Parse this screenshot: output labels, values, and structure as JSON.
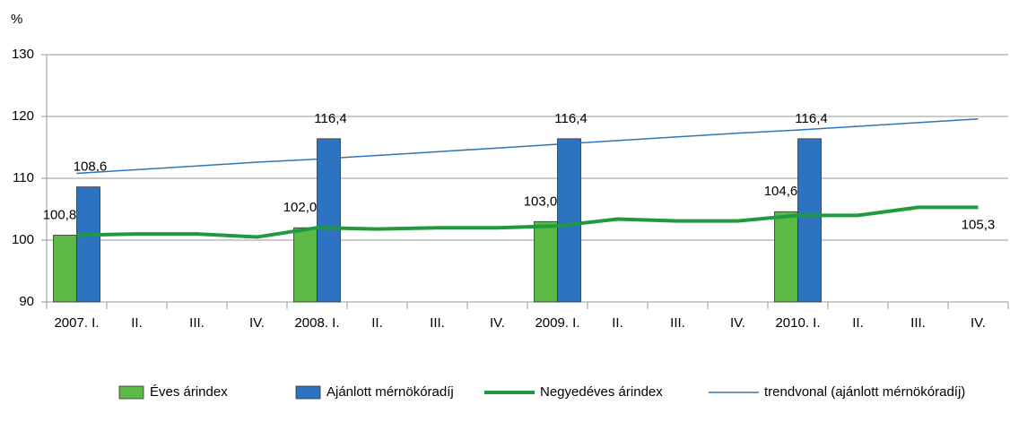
{
  "chart_data": {
    "type": "bar-line",
    "y_unit": "%",
    "categories": [
      "2007. I.",
      "II.",
      "III.",
      "IV.",
      "2008. I.",
      "II.",
      "III.",
      "IV.",
      "2009. I.",
      "II.",
      "III.",
      "IV.",
      "2010. I.",
      "II.",
      "III.",
      "IV."
    ],
    "series": [
      {
        "name": "Éves árindex",
        "type": "bar",
        "color": "#5cb946",
        "values": [
          100.8,
          null,
          null,
          null,
          102.0,
          null,
          null,
          null,
          103.0,
          null,
          null,
          null,
          104.6,
          null,
          null,
          null
        ],
        "value_labels": [
          "100,8",
          null,
          null,
          null,
          "102,0",
          null,
          null,
          null,
          "103,0",
          null,
          null,
          null,
          "104,6",
          null,
          null,
          null
        ]
      },
      {
        "name": "Ajánlott mérnökóradíj",
        "type": "bar",
        "color": "#2e72c2",
        "values": [
          108.6,
          null,
          null,
          null,
          116.4,
          null,
          null,
          null,
          116.4,
          null,
          null,
          null,
          116.4,
          null,
          null,
          null
        ],
        "value_labels": [
          "108,6",
          null,
          null,
          null,
          "116,4",
          null,
          null,
          null,
          "116,4",
          null,
          null,
          null,
          "116,4",
          null,
          null,
          null
        ]
      },
      {
        "name": "Negyedéves árindex",
        "type": "line",
        "color": "#1f9a3c",
        "width": 4,
        "values": [
          100.8,
          101.0,
          101.0,
          100.5,
          102.0,
          101.8,
          102.0,
          102.0,
          102.3,
          103.4,
          103.1,
          103.1,
          104.0,
          104.0,
          105.3,
          105.3
        ],
        "value_labels": [
          null,
          null,
          null,
          null,
          null,
          null,
          null,
          null,
          null,
          null,
          null,
          null,
          null,
          null,
          null,
          "105,3"
        ]
      },
      {
        "name": "trendvonal (ajánlott mérnökóradíj)",
        "type": "line",
        "color": "#2e75b6",
        "width": 1.5,
        "values": [
          110.8,
          111.4,
          112.0,
          112.6,
          113.1,
          113.7,
          114.3,
          114.9,
          115.5,
          116.1,
          116.7,
          117.3,
          117.8,
          118.4,
          119.0,
          119.6
        ]
      }
    ],
    "ylim": [
      90,
      130
    ],
    "yticks": [
      90,
      100,
      110,
      120,
      130
    ],
    "grid": true,
    "legend": "bottom"
  }
}
